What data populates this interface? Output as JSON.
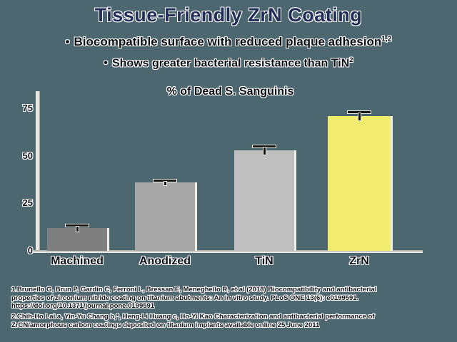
{
  "slide": {
    "title": "Tissue-Friendly ZrN Coating",
    "bullets": [
      {
        "label": "Biocompatible surface with reduced plaque adhesion",
        "superscript": "1,2"
      },
      {
        "label": "Shows greater bacterial resistance than TiN",
        "superscript": "2"
      }
    ],
    "footnote_1": "1.Brunello G, Brun P, Gardin C, Ferroni L, Bressan E, Meneghello R, et al (2018) Biocompatibility and antibacterial\nproperties of zirconium nitride coating on titanium abutments: An in vitro study. PLoS ONE 13(6): e0199591.\nhttps://doi.org/10.1371/journal.pone.0199591",
    "footnote_2": "2.Chih-Ho Lai a, Yin-Yu Chang b,*, Heng-Li Huang c, Ho-Yi Kao Characterization and antibacterial performance of\nZrCN/amorphous carbon coatings deposited on titanium implants available online 25 June 2011"
  },
  "chart_data": {
    "type": "bar",
    "title": "% of Dead S. Sanguinis",
    "categories": [
      "Machined",
      "Anodized",
      "TiN",
      "ZrN"
    ],
    "values": [
      12,
      36,
      53,
      71
    ],
    "errors": [
      2,
      1.5,
      2.5,
      2.5
    ],
    "bar_colors": [
      "#7f7f7f",
      "#a8a8a8",
      "#bfbfbf",
      "#f2ec6e"
    ],
    "xlabel": "",
    "ylabel": "",
    "yticks": [
      0,
      25,
      50,
      75
    ],
    "ylim": [
      0,
      83
    ],
    "grid": false,
    "legend": false,
    "error_bars": true
  },
  "colors": {
    "background": "#4d6770",
    "title": "#222c58",
    "body_text": "#0d0f16",
    "axis": "#e6e4dc",
    "highlight_bar": "#f2ec6e"
  }
}
